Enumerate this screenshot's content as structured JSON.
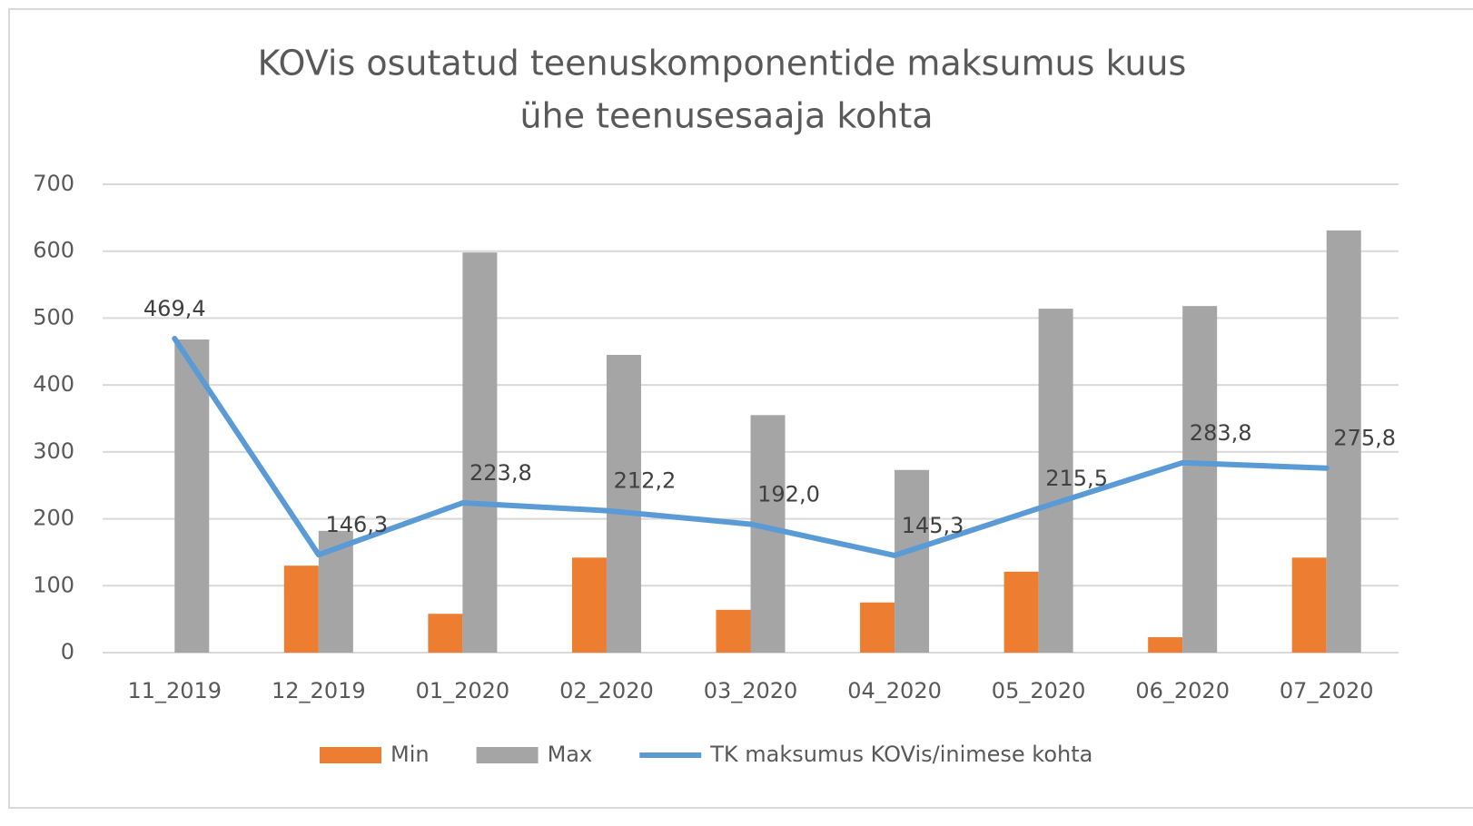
{
  "chart_data": {
    "type": "bar_line",
    "title": [
      "KOVis osutatud teenuskomponentide  maksumus kuus",
      "ühe teenusesaaja kohta"
    ],
    "categories": [
      "11_2019",
      "12_2019",
      "01_2020",
      "02_2020",
      "03_2020",
      "04_2020",
      "05_2020",
      "06_2020",
      "07_2020"
    ],
    "series": [
      {
        "name": "Min",
        "type": "bar",
        "color": "#ed7d31",
        "values": [
          0,
          130,
          58,
          142,
          64,
          75,
          121,
          23,
          142
        ]
      },
      {
        "name": "Max",
        "type": "bar",
        "color": "#a5a5a5",
        "values": [
          468,
          182,
          598,
          445,
          355,
          273,
          514,
          518,
          631
        ]
      },
      {
        "name": "TK maksumus KOVis/inimese kohta",
        "type": "line",
        "color": "#5b9bd5",
        "values": [
          469.4,
          146.3,
          223.8,
          212.2,
          192.0,
          145.3,
          215.5,
          283.8,
          275.8
        ],
        "value_labels": [
          "469,4",
          "146,3",
          "223,8",
          "212,2",
          "192,0",
          "145,3",
          "215,5",
          "283,8",
          "275,8"
        ]
      }
    ],
    "ylim": [
      0,
      700
    ],
    "yticks": [
      0,
      100,
      200,
      300,
      400,
      500,
      600,
      700
    ],
    "grid": true,
    "legend": "bottom"
  }
}
